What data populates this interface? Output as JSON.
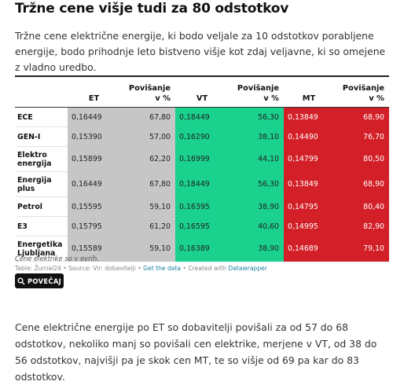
{
  "article": {
    "title": "Tržne cene višje tudi za 80 odstotkov",
    "intro": "Tržne cene električne energije, ki bodo veljale za 10 odstotkov porabljene energije, bodo prihodnje leto bistveno višje kot zdaj veljavne, ki so omejene z vladno uredbo.",
    "body": "Cene električne energije po ET so dobavitelji povišali za od 57 do 68 odstotkov, nekoliko manj so povišali cen elektrike, merjene v VT, od 38 do 56 odstotkov, najvišji pa je skok cen MT, te so višje od 69 pa kar do 83 odstotkov."
  },
  "table": {
    "headers": [
      "",
      "ET",
      "Povišanje\nv %",
      "VT",
      "Povišanje\nv %",
      "MT",
      "Povišanje\nv %"
    ],
    "rows": [
      [
        "ECE",
        "0,16449",
        "67,80",
        "0,18449",
        "56,30",
        "0,13849",
        "68,90"
      ],
      [
        "GEN-I",
        "0,15390",
        "57,00",
        "0,16290",
        "38,10",
        "0,14490",
        "76,70"
      ],
      [
        "Elektro\nenergija",
        "0,15899",
        "62,20",
        "0,16999",
        "44,10",
        "0,14799",
        "80,50"
      ],
      [
        "Energija\nplus",
        "0,16449",
        "67,80",
        "0,18449",
        "56,30",
        "0,13849",
        "68,90"
      ],
      [
        "Petrol",
        "0,15595",
        "59,10",
        "0,16395",
        "38,90",
        "0,14795",
        "80,40"
      ],
      [
        "E3",
        "0,15795",
        "61,20",
        "0,16595",
        "40,60",
        "0,14995",
        "82,90"
      ],
      [
        "Energetika\nLjubljana",
        "0,15589",
        "59,10",
        "0,16389",
        "38,90",
        "0,14689",
        "79,10"
      ]
    ],
    "colors": {
      "et": "#c6c6c6",
      "vt": "#1ad18e",
      "mt": "#d31f27"
    }
  },
  "footer": {
    "note": "Cene elektrike so v evrih.",
    "source_prefix": "Table: Žurnal24 • Source: Vir: dobavitelji • ",
    "get_data": "Get the data",
    "created": " • Created with ",
    "datawrapper": "Datawrapper",
    "button_label": "POVEČAJ",
    "button_icon": "search-icon"
  }
}
